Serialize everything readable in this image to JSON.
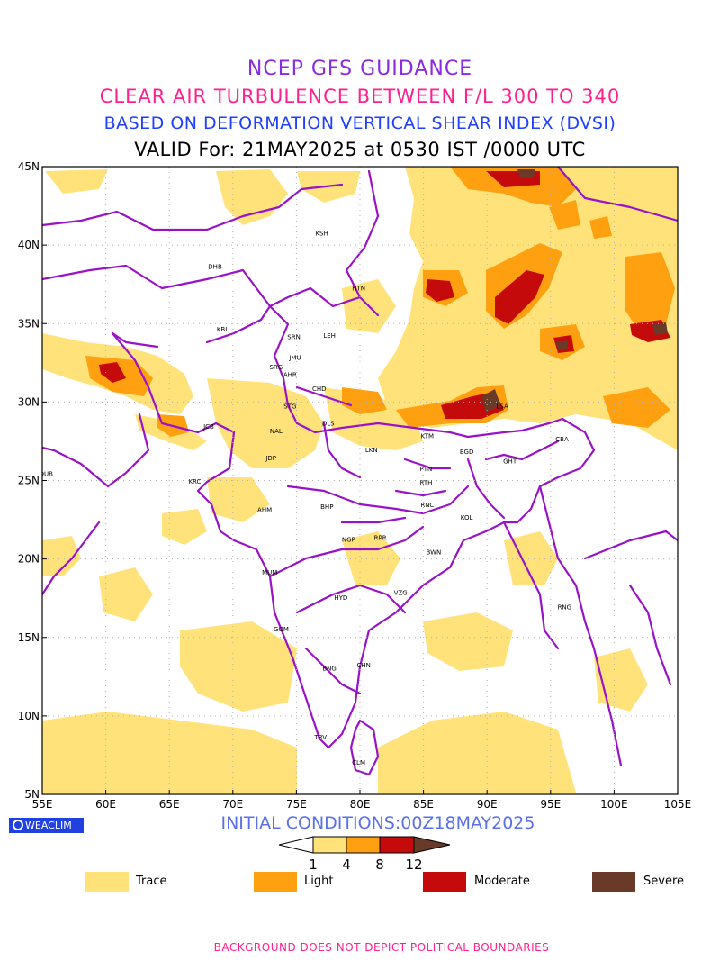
{
  "header": {
    "line1": "NCEP GFS GUIDANCE",
    "line2": "CLEAR AIR TURBULENCE BETWEEN F/L 300 TO 340",
    "line3": "BASED ON DEFORMATION VERTICAL SHEAR INDEX (DVSI)",
    "line4": "VALID For: 21MAY2025 at 0530 IST /0000 UTC",
    "colors": {
      "line1": "#8a2be2",
      "line2": "#ff1f8e",
      "line3": "#1f3fff",
      "line4": "#000000"
    }
  },
  "map": {
    "lat_labels": [
      "45N",
      "40N",
      "35N",
      "30N",
      "25N",
      "20N",
      "15N",
      "10N",
      "5N"
    ],
    "lon_labels": [
      "55E",
      "60E",
      "65E",
      "70E",
      "75E",
      "80E",
      "85E",
      "90E",
      "95E",
      "100E",
      "105E"
    ],
    "lat_range": [
      5,
      45
    ],
    "lon_range": [
      55,
      105
    ],
    "boundary_color": "#9a12c8",
    "cities": [
      {
        "code": "KSH",
        "lon": 77.0,
        "lat": 40.6
      },
      {
        "code": "DHB",
        "lon": 68.6,
        "lat": 38.5
      },
      {
        "code": "HTN",
        "lon": 79.9,
        "lat": 37.1
      },
      {
        "code": "KBL",
        "lon": 69.2,
        "lat": 34.5
      },
      {
        "code": "SRN",
        "lon": 74.8,
        "lat": 34.0
      },
      {
        "code": "LEH",
        "lon": 77.6,
        "lat": 34.1
      },
      {
        "code": "JMU",
        "lon": 74.9,
        "lat": 32.7
      },
      {
        "code": "SRG",
        "lon": 73.4,
        "lat": 32.1
      },
      {
        "code": "AHR",
        "lon": 74.5,
        "lat": 31.6
      },
      {
        "code": "CHD",
        "lon": 76.8,
        "lat": 30.7
      },
      {
        "code": "STG",
        "lon": 74.5,
        "lat": 29.6
      },
      {
        "code": "LSA",
        "lon": 91.2,
        "lat": 29.6
      },
      {
        "code": "DLS",
        "lon": 77.5,
        "lat": 28.5
      },
      {
        "code": "JCB",
        "lon": 68.1,
        "lat": 28.3
      },
      {
        "code": "NAL",
        "lon": 73.4,
        "lat": 28.0
      },
      {
        "code": "KTM",
        "lon": 85.3,
        "lat": 27.7
      },
      {
        "code": "CBA",
        "lon": 95.9,
        "lat": 27.5
      },
      {
        "code": "BGD",
        "lon": 88.4,
        "lat": 26.7
      },
      {
        "code": "LKN",
        "lon": 80.9,
        "lat": 26.8
      },
      {
        "code": "GHT",
        "lon": 91.8,
        "lat": 26.1
      },
      {
        "code": "JDP",
        "lon": 73.0,
        "lat": 26.3
      },
      {
        "code": "PTN",
        "lon": 85.2,
        "lat": 25.6
      },
      {
        "code": "DUB",
        "lon": 55.3,
        "lat": 25.3
      },
      {
        "code": "RTH",
        "lon": 85.2,
        "lat": 24.7
      },
      {
        "code": "KRC",
        "lon": 67.0,
        "lat": 24.8
      },
      {
        "code": "AHM",
        "lon": 72.5,
        "lat": 23.0
      },
      {
        "code": "BHP",
        "lon": 77.4,
        "lat": 23.2
      },
      {
        "code": "RNC",
        "lon": 85.3,
        "lat": 23.3
      },
      {
        "code": "KOL",
        "lon": 88.4,
        "lat": 22.5
      },
      {
        "code": "NGP",
        "lon": 79.1,
        "lat": 21.1
      },
      {
        "code": "RPR",
        "lon": 81.6,
        "lat": 21.2
      },
      {
        "code": "BWN",
        "lon": 85.8,
        "lat": 20.3
      },
      {
        "code": "MUM",
        "lon": 72.9,
        "lat": 19.0
      },
      {
        "code": "HYD",
        "lon": 78.5,
        "lat": 17.4
      },
      {
        "code": "VZG",
        "lon": 83.2,
        "lat": 17.7
      },
      {
        "code": "RNG",
        "lon": 96.1,
        "lat": 16.8
      },
      {
        "code": "GOM",
        "lon": 73.8,
        "lat": 15.4
      },
      {
        "code": "CHN",
        "lon": 80.3,
        "lat": 13.1
      },
      {
        "code": "BNG",
        "lon": 77.6,
        "lat": 12.9
      },
      {
        "code": "TRV",
        "lon": 76.9,
        "lat": 8.5
      },
      {
        "code": "CLM",
        "lon": 79.9,
        "lat": 6.9
      }
    ]
  },
  "branding": {
    "label": "WEACLIM",
    "icon": "globe-icon"
  },
  "initial_conditions": "INITIAL CONDITIONS:00Z18MAY2025",
  "initial_conditions_color": "#5a70ea",
  "colorbar": {
    "ticks": [
      "1",
      "4",
      "8",
      "12"
    ],
    "colors": [
      "#ffe27a",
      "#ffa011",
      "#c40a0a",
      "#6a3a28"
    ]
  },
  "legend": [
    {
      "label": "Trace",
      "color": "#ffe27a"
    },
    {
      "label": "Light",
      "color": "#ffa011"
    },
    {
      "label": "Moderate",
      "color": "#c40a0a"
    },
    {
      "label": "Severe",
      "color": "#6a3a28"
    }
  ],
  "footer": {
    "text": "BACKGROUND DOES NOT DEPICT POLITICAL BOUNDARIES",
    "color": "#ff1f8e"
  }
}
